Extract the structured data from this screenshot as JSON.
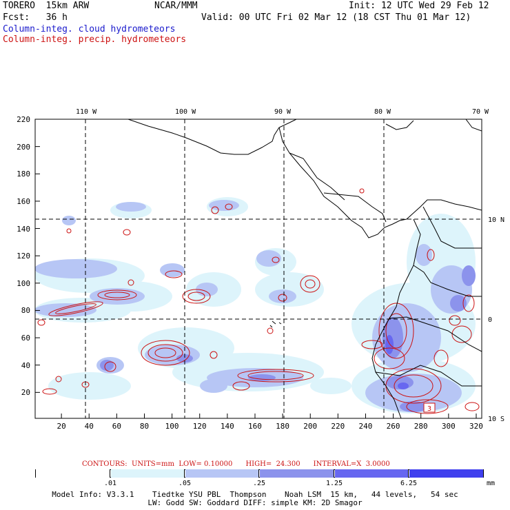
{
  "header": {
    "model": "TORERO  15km ARW",
    "org": "NCAR/MMM",
    "init": "Init: 12 UTC Wed 29 Feb 12",
    "fcst": "Fcst:   36 h",
    "valid": "Valid: 00 UTC Fri 02 Mar 12 (18 CST Thu 01 Mar 12)",
    "field1": "Column-integ. cloud hydrometeors",
    "field2": "Column-integ. precip. hydrometeors"
  },
  "axes": {
    "lon_labels": [
      "110 W",
      "100 W",
      "90 W",
      "80 W",
      "70 W"
    ],
    "lat_labels": [
      "10 N",
      "0",
      "10 S"
    ],
    "x_ticks": [
      "20",
      "40",
      "60",
      "80",
      "100",
      "120",
      "140",
      "160",
      "180",
      "200",
      "220",
      "240",
      "260",
      "280",
      "300",
      "320"
    ],
    "y_ticks": [
      "220",
      "200",
      "180",
      "160",
      "140",
      "120",
      "100",
      "80",
      "60",
      "40",
      "20"
    ]
  },
  "contours": {
    "label": "CONTOURS:  UNITS=mm  LOW= 0.10000      HIGH=  24.300      INTERVAL=X  3.0000",
    "color": "#cc1111"
  },
  "colorbar": {
    "labels": [
      ".01",
      ".05",
      ".25",
      "1.25",
      "6.25"
    ],
    "units": "mm",
    "colors": [
      "#ffffff",
      "#ddf4fb",
      "#b7c6f5",
      "#8c93ec",
      "#6767f0",
      "#4040ee",
      "#1a10f0"
    ]
  },
  "model_info": {
    "line1": "Model Info: V3.3.1    Tiedtke YSU PBL  Thompson    Noah LSM  15 km,   44 levels,   54 sec",
    "line2": "LW: Godd SW: Goddard DIFF: simple KM: 2D Smagor"
  },
  "map_labels": {
    "contour_value": "3"
  }
}
